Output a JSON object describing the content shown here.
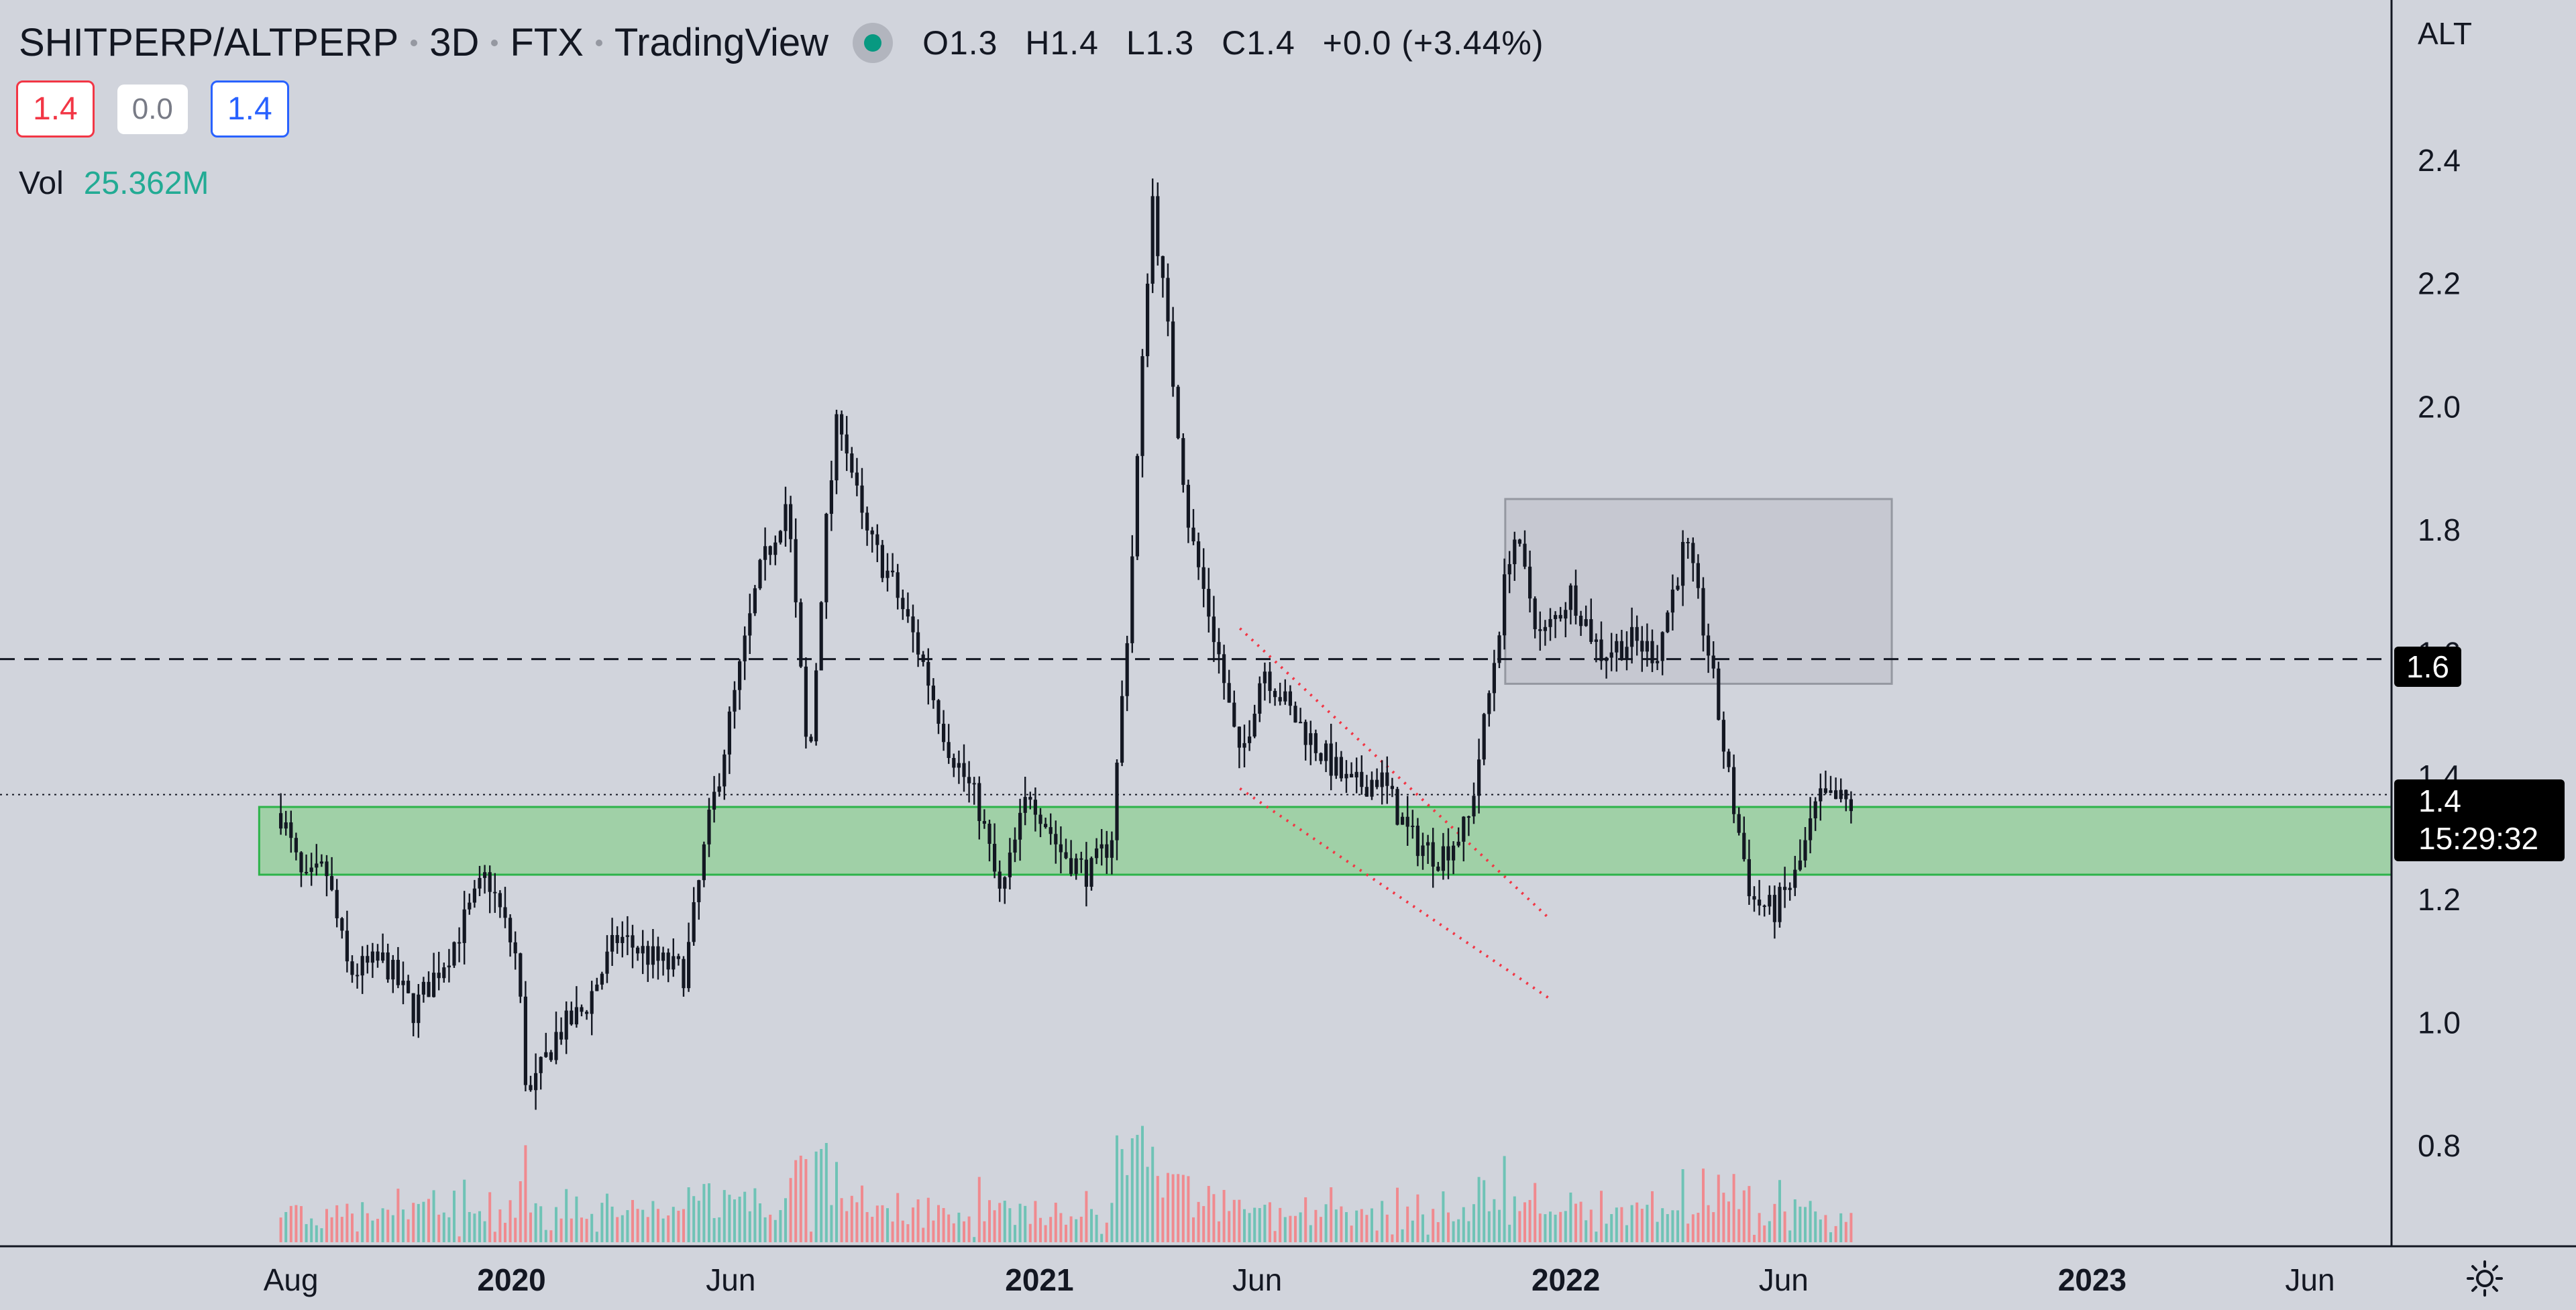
{
  "header": {
    "symbol": "SHITPERP/ALTPERP",
    "interval": "3D",
    "exchange": "FTX",
    "source": "TradingView",
    "ohlc": {
      "o": "O1.3",
      "h": "H1.4",
      "l": "L1.3",
      "c": "C1.4",
      "chg": "+0.0 (+3.44%)"
    }
  },
  "order_buttons": {
    "sell": "1.4",
    "spread": "0.0",
    "buy": "1.4"
  },
  "volume": {
    "label": "Vol",
    "value": "25.362M"
  },
  "price_tags": {
    "level": "1.6",
    "last": "1.4",
    "countdown": "15:29:32"
  },
  "colors": {
    "background": "#d1d4dc",
    "candle": "#131722",
    "zone_fill": "#8fcf95",
    "zone_border": "#2db34a",
    "box": "#9598a1",
    "up_volume": "#6fc3b6",
    "down_volume": "#f08a8f",
    "channel": "#f23645"
  },
  "icons": {
    "settings": "sun-gear-icon",
    "live": "live-status-dot-icon"
  },
  "chart_data": {
    "type": "candlestick",
    "currency_label": "ALT",
    "x_ticks": [
      "Aug",
      "2020",
      "Jun",
      "2021",
      "Jun",
      "2022",
      "Jun",
      "2023",
      "Jun"
    ],
    "y_ticks": [
      "2.4",
      "2.2",
      "2.0",
      "1.8",
      "1.6",
      "1.4",
      "1.2",
      "1.0",
      "0.8"
    ],
    "ylim": [
      0.65,
      2.55
    ],
    "series": [
      {
        "name": "SHITPERP/ALTPERP",
        "values": [
          [
            "2019-07-25",
            1.34
          ],
          [
            "2019-08-10",
            1.22
          ],
          [
            "2019-08-25",
            1.25
          ],
          [
            "2019-09-10",
            1.08
          ],
          [
            "2019-10-05",
            1.1
          ],
          [
            "2019-10-25",
            1.02
          ],
          [
            "2019-11-20",
            1.12
          ],
          [
            "2019-12-15",
            1.24
          ],
          [
            "2020-01-05",
            1.1
          ],
          [
            "2020-01-12",
            0.87
          ],
          [
            "2020-02-01",
            0.98
          ],
          [
            "2020-02-20",
            1.02
          ],
          [
            "2020-03-15",
            1.14
          ],
          [
            "2020-04-10",
            1.1
          ],
          [
            "2020-04-30",
            1.08
          ],
          [
            "2020-05-15",
            1.3
          ],
          [
            "2020-06-01",
            1.5
          ],
          [
            "2020-06-20",
            1.72
          ],
          [
            "2020-07-10",
            1.85
          ],
          [
            "2020-07-25",
            1.4
          ],
          [
            "2020-08-05",
            1.78
          ],
          [
            "2020-08-15",
            2.0
          ],
          [
            "2020-09-01",
            1.8
          ],
          [
            "2020-09-20",
            1.72
          ],
          [
            "2020-10-10",
            1.6
          ],
          [
            "2020-10-30",
            1.45
          ],
          [
            "2020-11-20",
            1.35
          ],
          [
            "2020-12-05",
            1.2
          ],
          [
            "2020-12-25",
            1.38
          ],
          [
            "2021-01-15",
            1.28
          ],
          [
            "2021-02-05",
            1.24
          ],
          [
            "2021-02-20",
            1.3
          ],
          [
            "2021-03-05",
            1.7
          ],
          [
            "2021-03-20",
            2.35
          ],
          [
            "2021-04-01",
            2.1
          ],
          [
            "2021-04-15",
            1.8
          ],
          [
            "2021-05-05",
            1.6
          ],
          [
            "2021-05-20",
            1.42
          ],
          [
            "2021-06-05",
            1.58
          ],
          [
            "2021-06-25",
            1.5
          ],
          [
            "2021-07-15",
            1.44
          ],
          [
            "2021-08-05",
            1.38
          ],
          [
            "2021-08-25",
            1.4
          ],
          [
            "2021-09-15",
            1.3
          ],
          [
            "2021-10-05",
            1.27
          ],
          [
            "2021-10-25",
            1.32
          ],
          [
            "2021-11-10",
            1.55
          ],
          [
            "2021-11-25",
            1.8
          ],
          [
            "2021-12-15",
            1.62
          ],
          [
            "2022-01-05",
            1.7
          ],
          [
            "2022-01-25",
            1.6
          ],
          [
            "2022-02-15",
            1.62
          ],
          [
            "2022-03-05",
            1.6
          ],
          [
            "2022-03-25",
            1.78
          ],
          [
            "2022-04-10",
            1.6
          ],
          [
            "2022-04-25",
            1.38
          ],
          [
            "2022-05-10",
            1.2
          ],
          [
            "2022-05-25",
            1.18
          ],
          [
            "2022-06-10",
            1.24
          ],
          [
            "2022-06-25",
            1.36
          ],
          [
            "2022-07-10",
            1.36
          ],
          [
            "2022-07-20",
            1.35
          ]
        ]
      }
    ],
    "horizontal_line": 1.59,
    "last_price": 1.37,
    "support_zone": [
      1.24,
      1.35
    ],
    "range_box": {
      "x": [
        "2021-11-20",
        "2022-08-15"
      ],
      "y": [
        1.55,
        1.85
      ]
    },
    "channel_lines": [
      {
        "from": [
          "2021-05-20",
          1.64
        ],
        "to": [
          "2021-12-20",
          1.17
        ]
      },
      {
        "from": [
          "2021-05-20",
          1.38
        ],
        "to": [
          "2021-12-20",
          1.04
        ]
      }
    ]
  }
}
